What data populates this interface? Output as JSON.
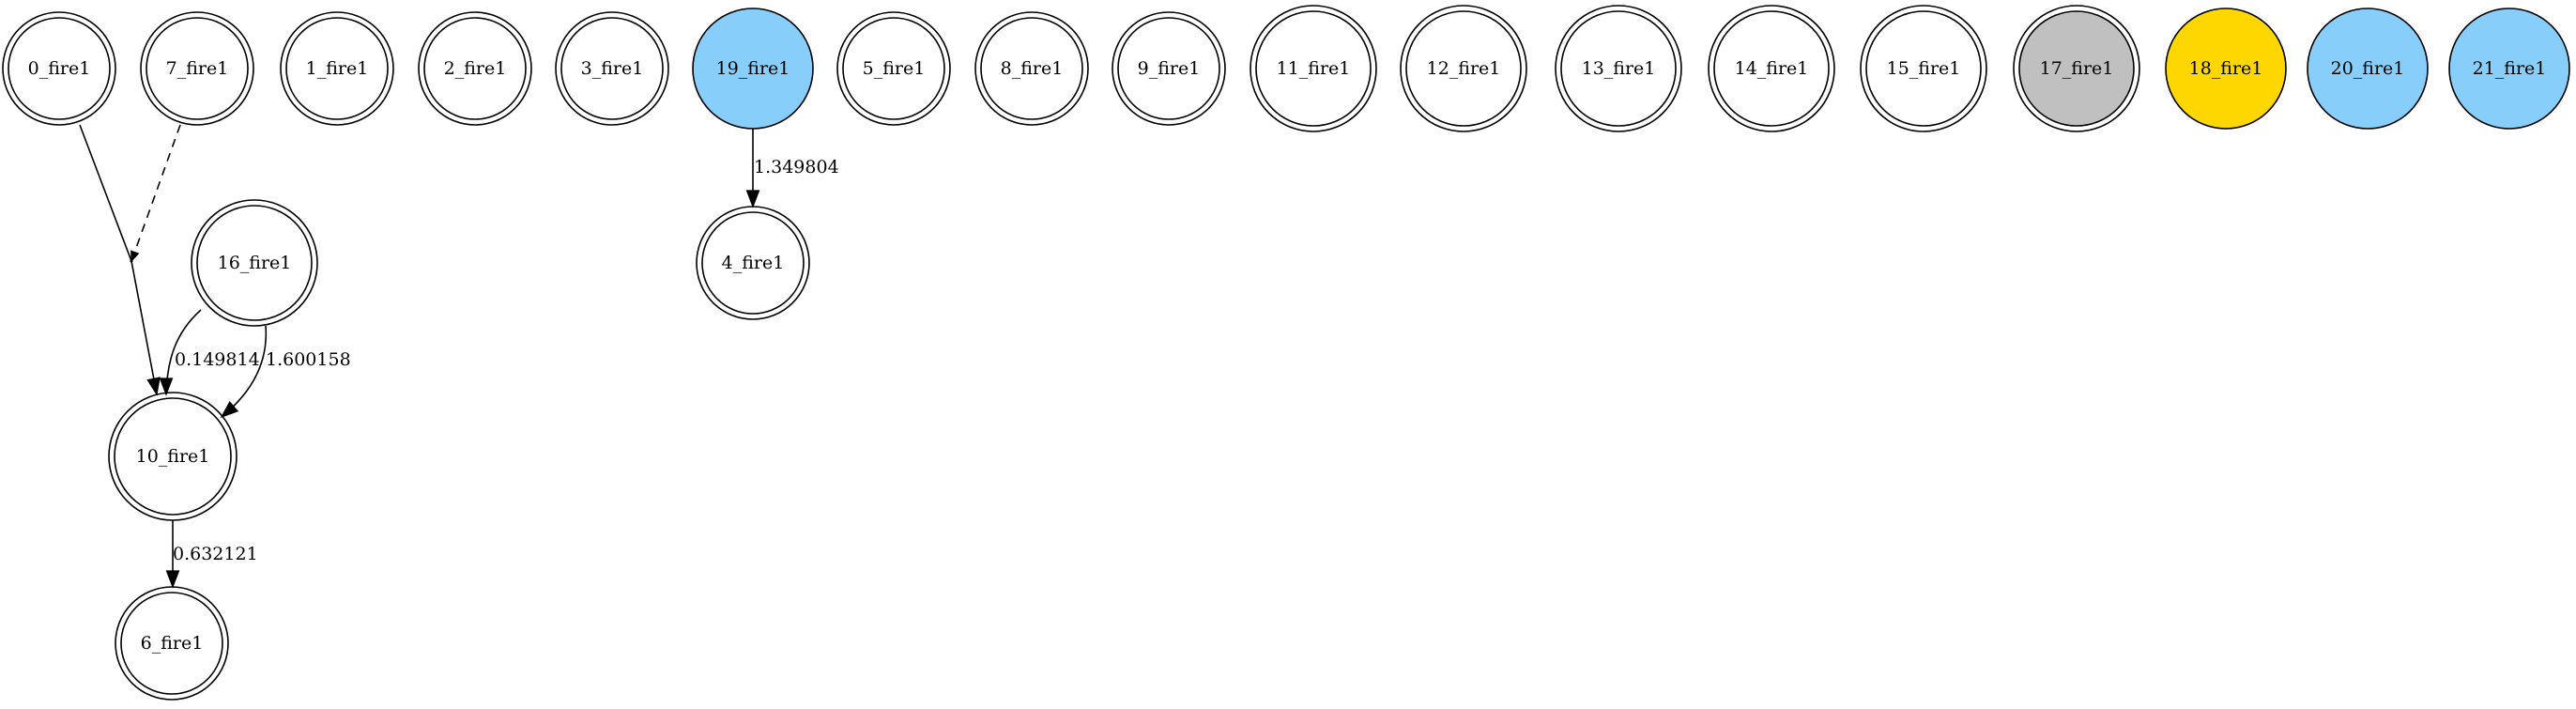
{
  "colors": {
    "default_fill": "#ffffff",
    "blue_fill": "#87cefa",
    "gray_fill": "#c0c0c0",
    "gold_fill": "#ffd700",
    "stroke": "#000000"
  },
  "nodes": [
    {
      "id": "0_fire1",
      "label": "0_fire1",
      "style": "double",
      "fill": "#ffffff"
    },
    {
      "id": "7_fire1",
      "label": "7_fire1",
      "style": "double",
      "fill": "#ffffff"
    },
    {
      "id": "1_fire1",
      "label": "1_fire1",
      "style": "double",
      "fill": "#ffffff"
    },
    {
      "id": "2_fire1",
      "label": "2_fire1",
      "style": "double",
      "fill": "#ffffff"
    },
    {
      "id": "3_fire1",
      "label": "3_fire1",
      "style": "double",
      "fill": "#ffffff"
    },
    {
      "id": "19_fire1",
      "label": "19_fire1",
      "style": "single",
      "fill": "#87cefa"
    },
    {
      "id": "5_fire1",
      "label": "5_fire1",
      "style": "double",
      "fill": "#ffffff"
    },
    {
      "id": "8_fire1",
      "label": "8_fire1",
      "style": "double",
      "fill": "#ffffff"
    },
    {
      "id": "9_fire1",
      "label": "9_fire1",
      "style": "double",
      "fill": "#ffffff"
    },
    {
      "id": "11_fire1",
      "label": "11_fire1",
      "style": "double",
      "fill": "#ffffff"
    },
    {
      "id": "12_fire1",
      "label": "12_fire1",
      "style": "double",
      "fill": "#ffffff"
    },
    {
      "id": "13_fire1",
      "label": "13_fire1",
      "style": "double",
      "fill": "#ffffff"
    },
    {
      "id": "14_fire1",
      "label": "14_fire1",
      "style": "double",
      "fill": "#ffffff"
    },
    {
      "id": "15_fire1",
      "label": "15_fire1",
      "style": "double",
      "fill": "#ffffff"
    },
    {
      "id": "17_fire1",
      "label": "17_fire1",
      "style": "double",
      "fill": "#c0c0c0"
    },
    {
      "id": "18_fire1",
      "label": "18_fire1",
      "style": "single",
      "fill": "#ffd700"
    },
    {
      "id": "20_fire1",
      "label": "20_fire1",
      "style": "single",
      "fill": "#87cefa"
    },
    {
      "id": "21_fire1",
      "label": "21_fire1",
      "style": "single",
      "fill": "#87cefa"
    },
    {
      "id": "16_fire1",
      "label": "16_fire1",
      "style": "double",
      "fill": "#ffffff"
    },
    {
      "id": "4_fire1",
      "label": "4_fire1",
      "style": "double",
      "fill": "#ffffff"
    },
    {
      "id": "10_fire1",
      "label": "10_fire1",
      "style": "double",
      "fill": "#ffffff"
    },
    {
      "id": "6_fire1",
      "label": "6_fire1",
      "style": "double",
      "fill": "#ffffff"
    }
  ],
  "edges": [
    {
      "from": "0_fire1",
      "to": "10_fire1",
      "label": "",
      "style": "solid",
      "via": "junction"
    },
    {
      "from": "7_fire1",
      "to": "junction",
      "label": "",
      "style": "dashed"
    },
    {
      "from": "16_fire1",
      "to": "10_fire1",
      "label": "0.149814",
      "style": "solid"
    },
    {
      "from": "16_fire1",
      "to": "10_fire1",
      "label": "1.600158",
      "style": "solid"
    },
    {
      "from": "19_fire1",
      "to": "4_fire1",
      "label": "1.349804",
      "style": "solid"
    },
    {
      "from": "10_fire1",
      "to": "6_fire1",
      "label": "0.632121",
      "style": "solid"
    }
  ]
}
